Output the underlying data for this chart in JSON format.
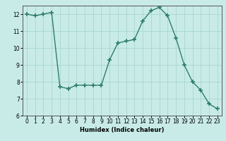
{
  "x": [
    0,
    1,
    2,
    3,
    4,
    5,
    6,
    7,
    8,
    9,
    10,
    11,
    12,
    13,
    14,
    15,
    16,
    17,
    18,
    19,
    20,
    21,
    22,
    23
  ],
  "y": [
    12.0,
    11.9,
    12.0,
    12.1,
    7.7,
    7.6,
    7.8,
    7.8,
    7.8,
    7.8,
    9.3,
    10.3,
    10.4,
    10.5,
    11.6,
    12.2,
    12.4,
    11.9,
    10.6,
    9.0,
    8.0,
    7.5,
    6.7,
    6.4
  ],
  "line_color": "#2e7d6e",
  "marker": "+",
  "marker_size": 4,
  "bg_color": "#c8ebe8",
  "grid_color": "#aad6d0",
  "xlabel": "Humidex (Indice chaleur)",
  "xlim": [
    -0.5,
    23.5
  ],
  "ylim": [
    6,
    12.5
  ],
  "yticks": [
    6,
    7,
    8,
    9,
    10,
    11,
    12
  ],
  "xticks": [
    0,
    1,
    2,
    3,
    4,
    5,
    6,
    7,
    8,
    9,
    10,
    11,
    12,
    13,
    14,
    15,
    16,
    17,
    18,
    19,
    20,
    21,
    22,
    23
  ],
  "xlabel_fontsize": 6,
  "tick_fontsize": 5.5
}
